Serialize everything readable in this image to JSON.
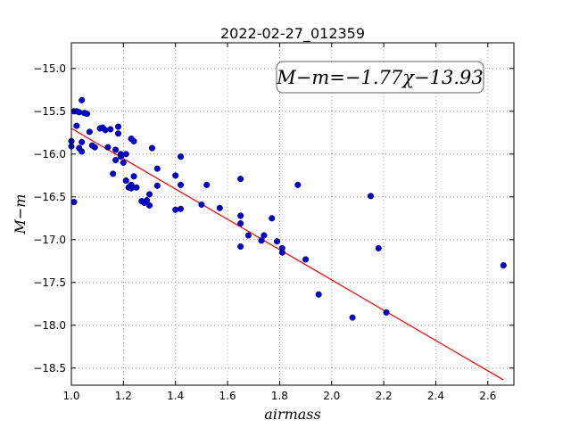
{
  "chart_data": {
    "type": "scatter",
    "title": "2022-02-27_012359",
    "xlabel": "airmass",
    "ylabel": "M−m",
    "xlim": [
      1.0,
      2.7
    ],
    "ylim": [
      -18.7,
      -14.7
    ],
    "y_inverted": true,
    "grid": true,
    "x_ticks": [
      1.0,
      1.2,
      1.4,
      1.6,
      1.8,
      2.0,
      2.2,
      2.4,
      2.6
    ],
    "x_tick_labels": [
      "1.0",
      "1.2",
      "1.4",
      "1.6",
      "1.8",
      "2.0",
      "2.2",
      "2.4",
      "2.6"
    ],
    "y_ticks": [
      -15.0,
      -15.5,
      -16.0,
      -16.5,
      -17.0,
      -17.5,
      -18.0,
      -18.5
    ],
    "y_tick_labels": [
      "−15.0",
      "−15.5",
      "−16.0",
      "−16.5",
      "−17.0",
      "−17.5",
      "−18.0",
      "−18.5"
    ],
    "annotation": "M−m=−1.77χ−13.93",
    "colors": {
      "points": "#0000cc",
      "fit": "#ff0000",
      "grid": "#888888"
    },
    "fit_line": {
      "slope": -1.77,
      "intercept": -13.93,
      "x_range": [
        1.0,
        2.66
      ]
    },
    "points": [
      {
        "x": 1.0,
        "y": -15.85
      },
      {
        "x": 1.0,
        "y": -15.91
      },
      {
        "x": 1.01,
        "y": -15.5
      },
      {
        "x": 1.02,
        "y": -15.67
      },
      {
        "x": 1.02,
        "y": -15.5
      },
      {
        "x": 1.03,
        "y": -15.93
      },
      {
        "x": 1.03,
        "y": -15.51
      },
      {
        "x": 1.04,
        "y": -15.37
      },
      {
        "x": 1.04,
        "y": -15.86
      },
      {
        "x": 1.04,
        "y": -15.97
      },
      {
        "x": 1.05,
        "y": -15.52
      },
      {
        "x": 1.06,
        "y": -15.53
      },
      {
        "x": 1.07,
        "y": -15.74
      },
      {
        "x": 1.08,
        "y": -15.9
      },
      {
        "x": 1.09,
        "y": -15.92
      },
      {
        "x": 1.01,
        "y": -16.56
      },
      {
        "x": 1.11,
        "y": -15.7
      },
      {
        "x": 1.12,
        "y": -15.69
      },
      {
        "x": 1.13,
        "y": -15.72
      },
      {
        "x": 1.14,
        "y": -15.92
      },
      {
        "x": 1.15,
        "y": -15.71
      },
      {
        "x": 1.16,
        "y": -16.23
      },
      {
        "x": 1.17,
        "y": -15.95
      },
      {
        "x": 1.17,
        "y": -16.07
      },
      {
        "x": 1.18,
        "y": -15.68
      },
      {
        "x": 1.18,
        "y": -15.76
      },
      {
        "x": 1.19,
        "y": -16.0
      },
      {
        "x": 1.19,
        "y": -16.03
      },
      {
        "x": 1.2,
        "y": -16.1
      },
      {
        "x": 1.21,
        "y": -16.0
      },
      {
        "x": 1.21,
        "y": -16.31
      },
      {
        "x": 1.22,
        "y": -16.39
      },
      {
        "x": 1.23,
        "y": -16.36
      },
      {
        "x": 1.23,
        "y": -16.4
      },
      {
        "x": 1.23,
        "y": -15.82
      },
      {
        "x": 1.24,
        "y": -15.85
      },
      {
        "x": 1.24,
        "y": -16.26
      },
      {
        "x": 1.25,
        "y": -16.39
      },
      {
        "x": 1.27,
        "y": -16.55
      },
      {
        "x": 1.28,
        "y": -16.57
      },
      {
        "x": 1.29,
        "y": -16.54
      },
      {
        "x": 1.3,
        "y": -16.6
      },
      {
        "x": 1.3,
        "y": -16.47
      },
      {
        "x": 1.31,
        "y": -15.93
      },
      {
        "x": 1.33,
        "y": -16.17
      },
      {
        "x": 1.33,
        "y": -16.37
      },
      {
        "x": 1.4,
        "y": -16.25
      },
      {
        "x": 1.4,
        "y": -16.65
      },
      {
        "x": 1.42,
        "y": -16.03
      },
      {
        "x": 1.42,
        "y": -16.36
      },
      {
        "x": 1.42,
        "y": -16.64
      },
      {
        "x": 1.5,
        "y": -16.59
      },
      {
        "x": 1.52,
        "y": -16.36
      },
      {
        "x": 1.57,
        "y": -16.63
      },
      {
        "x": 1.65,
        "y": -16.29
      },
      {
        "x": 1.65,
        "y": -16.72
      },
      {
        "x": 1.65,
        "y": -16.81
      },
      {
        "x": 1.65,
        "y": -17.08
      },
      {
        "x": 1.68,
        "y": -16.95
      },
      {
        "x": 1.73,
        "y": -17.01
      },
      {
        "x": 1.74,
        "y": -16.95
      },
      {
        "x": 1.77,
        "y": -16.75
      },
      {
        "x": 1.79,
        "y": -17.02
      },
      {
        "x": 1.81,
        "y": -17.1
      },
      {
        "x": 1.81,
        "y": -17.15
      },
      {
        "x": 1.87,
        "y": -16.36
      },
      {
        "x": 1.9,
        "y": -17.23
      },
      {
        "x": 1.95,
        "y": -17.64
      },
      {
        "x": 2.08,
        "y": -17.91
      },
      {
        "x": 2.15,
        "y": -16.49
      },
      {
        "x": 2.18,
        "y": -17.1
      },
      {
        "x": 2.21,
        "y": -17.85
      },
      {
        "x": 2.66,
        "y": -17.3
      }
    ]
  }
}
